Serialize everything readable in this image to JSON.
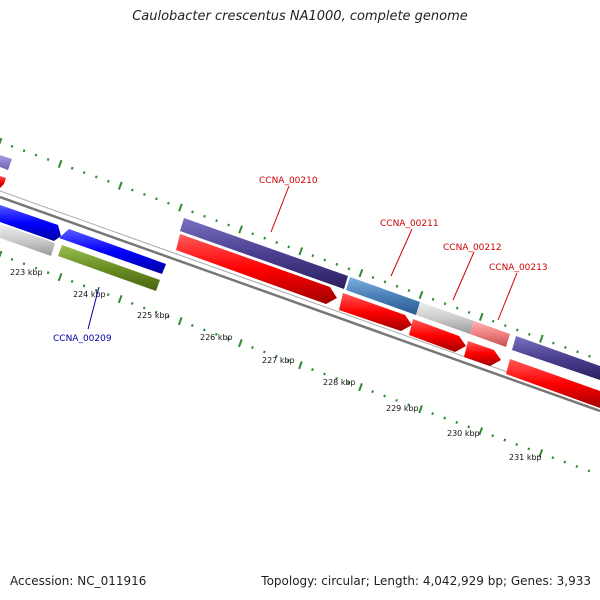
{
  "title": "Caulobacter crescentus NA1000, complete genome",
  "footer": {
    "accession_label": "Accession:",
    "accession": "NC_011916",
    "topology_label": "Topology:",
    "topology": "circular",
    "length_label": "Length:",
    "length": "4,042,929 bp",
    "genes_label": "Genes:",
    "genes": "3,933"
  },
  "colors": {
    "tick": "#2e8b2e",
    "backbone": "#888888",
    "label_red": "#cc0000",
    "label_blue": "#0000aa",
    "forward_red": "#ff0000",
    "purple": "#4b4090",
    "steelblue": "#4a80b8",
    "gray": "#cccccc",
    "pink": "#f08080",
    "blue": "#0000ff",
    "olive": "#6b8e23"
  },
  "scale": {
    "ticks": [
      "223 kbp",
      "224 kbp",
      "225 kbp",
      "226 kbp",
      "227 kbp",
      "228 kbp",
      "229 kbp",
      "230 kbp",
      "231 kbp"
    ]
  },
  "gene_labels": [
    {
      "text": "CCNA_00209",
      "color": "blue"
    },
    {
      "text": "CCNA_00210",
      "color": "red"
    },
    {
      "text": "CCNA_00211",
      "color": "red"
    },
    {
      "text": "CCNA_00212",
      "color": "red"
    },
    {
      "text": "CCNA_00213",
      "color": "red"
    }
  ]
}
